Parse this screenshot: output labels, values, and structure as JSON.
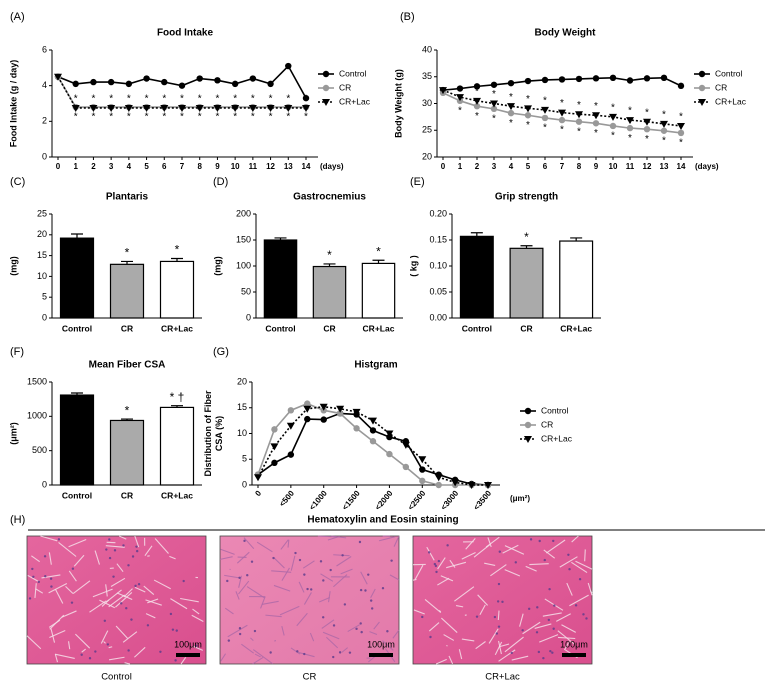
{
  "chart_data": [
    {
      "type": "line",
      "panel": "(A)",
      "title": "Food Intake",
      "ylabel": [
        "Food Intake (g / day)"
      ],
      "x_unit": "(days)",
      "x": [
        0,
        1,
        2,
        3,
        4,
        5,
        6,
        7,
        8,
        9,
        10,
        11,
        12,
        13,
        14
      ],
      "xlim": [
        0,
        14
      ],
      "xticks": [
        0,
        1,
        2,
        3,
        4,
        5,
        6,
        7,
        8,
        9,
        10,
        11,
        12,
        13,
        14
      ],
      "ylim": [
        0,
        6
      ],
      "yticks": [
        0,
        2,
        4,
        6
      ],
      "series": [
        {
          "name": "Control",
          "color": "#000000",
          "marker": "circle",
          "dash": "none",
          "values": [
            4.5,
            4.1,
            4.2,
            4.2,
            4.1,
            4.4,
            4.2,
            4.0,
            4.4,
            4.3,
            4.1,
            4.4,
            4.1,
            5.1,
            3.3
          ]
        },
        {
          "name": "CR",
          "color": "#999999",
          "marker": "circle",
          "dash": "none",
          "values": [
            4.5,
            2.8,
            2.8,
            2.8,
            2.8,
            2.8,
            2.8,
            2.8,
            2.8,
            2.8,
            2.8,
            2.8,
            2.8,
            2.8,
            2.8
          ],
          "significance": [
            null,
            "*",
            "*",
            "*",
            "*",
            "*",
            "*",
            "*",
            "*",
            "*",
            "*",
            "*",
            "*",
            "*",
            "*"
          ],
          "significance_side": "below"
        },
        {
          "name": "CR+Lac",
          "color": "#000000",
          "marker": "triangle-down",
          "dash": "2,2",
          "values": [
            4.5,
            2.75,
            2.75,
            2.75,
            2.75,
            2.75,
            2.75,
            2.75,
            2.75,
            2.75,
            2.75,
            2.75,
            2.75,
            2.75,
            2.75
          ],
          "significance": [
            null,
            "*",
            "*",
            "*",
            "*",
            "*",
            "*",
            "*",
            "*",
            "*",
            "*",
            "*",
            "*",
            "*",
            "*"
          ],
          "significance_side": "above"
        }
      ]
    },
    {
      "type": "line",
      "panel": "(B)",
      "title": "Body Weight",
      "ylabel": [
        "Body Weight (g)"
      ],
      "x_unit": "(days)",
      "x": [
        0,
        1,
        2,
        3,
        4,
        5,
        6,
        7,
        8,
        9,
        10,
        11,
        12,
        13,
        14
      ],
      "xlim": [
        0,
        14
      ],
      "xticks": [
        0,
        1,
        2,
        3,
        4,
        5,
        6,
        7,
        8,
        9,
        10,
        11,
        12,
        13,
        14
      ],
      "ylim": [
        20,
        40
      ],
      "yticks": [
        20,
        25,
        30,
        35,
        40
      ],
      "series": [
        {
          "name": "Control",
          "color": "#000000",
          "marker": "circle",
          "dash": "none",
          "values": [
            32.5,
            32.8,
            33.2,
            33.5,
            33.8,
            34.2,
            34.4,
            34.5,
            34.6,
            34.7,
            34.8,
            34.3,
            34.7,
            34.8,
            33.3
          ]
        },
        {
          "name": "CR",
          "color": "#999999",
          "marker": "circle",
          "dash": "none",
          "values": [
            32.0,
            30.5,
            29.5,
            29.0,
            28.2,
            27.8,
            27.3,
            26.9,
            26.6,
            26.3,
            25.8,
            25.4,
            25.2,
            24.9,
            24.5
          ],
          "significance": [
            null,
            "*",
            "*",
            "*",
            "*",
            "*",
            "*",
            "*",
            "*",
            "*",
            "*",
            "*",
            "*",
            "*",
            "*"
          ],
          "significance_side": "below"
        },
        {
          "name": "CR+Lac",
          "color": "#000000",
          "marker": "triangle-down",
          "dash": "2,2",
          "values": [
            32.5,
            31.2,
            30.5,
            30.0,
            29.5,
            29.1,
            28.8,
            28.3,
            28.0,
            27.8,
            27.5,
            26.9,
            26.6,
            26.2,
            25.8
          ],
          "significance": [
            null,
            null,
            "*",
            "*",
            "*",
            "*",
            "*",
            "*",
            "*",
            "*",
            "*",
            "*",
            "*",
            "*",
            "*"
          ],
          "significance_side": "above"
        }
      ]
    },
    {
      "type": "bar",
      "panel": "(C)",
      "title": "Plantaris",
      "ylabel": [
        "(mg)"
      ],
      "categories": [
        "Control",
        "CR",
        "CR+Lac"
      ],
      "values": [
        19.2,
        12.9,
        13.6
      ],
      "errors": [
        1.0,
        0.7,
        0.7
      ],
      "colors": [
        "#000000",
        "#aaaaaa",
        "#ffffff"
      ],
      "annotations": [
        null,
        "*",
        "*"
      ],
      "ylim": [
        0,
        25
      ],
      "yticks": [
        0,
        5,
        10,
        15,
        20,
        25
      ]
    },
    {
      "type": "bar",
      "panel": "(D)",
      "title": "Gastrocnemius",
      "ylabel": [
        "(mg)"
      ],
      "categories": [
        "Control",
        "CR",
        "CR+Lac"
      ],
      "values": [
        150,
        99,
        105
      ],
      "errors": [
        4,
        5,
        6
      ],
      "colors": [
        "#000000",
        "#aaaaaa",
        "#ffffff"
      ],
      "annotations": [
        null,
        "*",
        "*"
      ],
      "ylim": [
        0,
        200
      ],
      "yticks": [
        0,
        50,
        100,
        150,
        200
      ]
    },
    {
      "type": "bar",
      "panel": "(E)",
      "title": "Grip strength",
      "ylabel": [
        "( kg )"
      ],
      "categories": [
        "Control",
        "CR",
        "CR+Lac"
      ],
      "values": [
        0.157,
        0.134,
        0.148
      ],
      "errors": [
        0.007,
        0.005,
        0.006
      ],
      "colors": [
        "#000000",
        "#aaaaaa",
        "#ffffff"
      ],
      "annotations": [
        null,
        "*",
        null
      ],
      "ylim": [
        0,
        0.2
      ],
      "yticks": [
        {
          "value": 0,
          "label": "0.00"
        },
        {
          "value": 0.05,
          "label": "0.05"
        },
        {
          "value": 0.1,
          "label": "0.10"
        },
        {
          "value": 0.15,
          "label": "0.15"
        },
        {
          "value": 0.2,
          "label": "0.20"
        }
      ]
    },
    {
      "type": "bar",
      "panel": "(F)",
      "title": "Mean Fiber CSA",
      "ylabel": [
        "(μm²)"
      ],
      "categories": [
        "Control",
        "CR",
        "CR+Lac"
      ],
      "values": [
        1310,
        940,
        1130
      ],
      "errors": [
        30,
        20,
        25
      ],
      "colors": [
        "#000000",
        "#aaaaaa",
        "#ffffff"
      ],
      "annotations": [
        null,
        "*",
        "* †"
      ],
      "ylim": [
        0,
        1500
      ],
      "yticks": [
        0,
        500,
        1000,
        1500
      ]
    },
    {
      "type": "line",
      "panel": "(G)",
      "title": "Histgram",
      "ylabel": [
        "Distribution of Fiber",
        "CSA (%)"
      ],
      "x_unit": "(μm²)",
      "x": [
        0,
        250,
        500,
        750,
        1000,
        1250,
        1500,
        1750,
        2000,
        2250,
        2500,
        2750,
        3000,
        3250,
        3500
      ],
      "xlim": [
        0,
        3500
      ],
      "xticks": [
        0,
        {
          "value": 500,
          "label": "<500"
        },
        {
          "value": 1000,
          "label": "<1000"
        },
        {
          "value": 1500,
          "label": "<1500"
        },
        {
          "value": 2000,
          "label": "<2000"
        },
        {
          "value": 2500,
          "label": "<2500"
        },
        {
          "value": 3000,
          "label": "<3000"
        },
        {
          "value": 3500,
          "label": "<3500"
        }
      ],
      "rotate_xticks": true,
      "ylim": [
        0,
        20
      ],
      "yticks": [
        0,
        5,
        10,
        15,
        20
      ],
      "series": [
        {
          "name": "Control",
          "color": "#000000",
          "marker": "circle",
          "dash": "none",
          "values": [
            2.0,
            4.3,
            5.9,
            12.8,
            12.7,
            13.9,
            13.7,
            10.6,
            9.3,
            8.5,
            3.0,
            2.0,
            1.0,
            0.2,
            0
          ]
        },
        {
          "name": "CR",
          "color": "#999999",
          "marker": "circle",
          "dash": "none",
          "values": [
            2.0,
            10.8,
            14.5,
            15.8,
            14.5,
            13.9,
            11.0,
            8.5,
            6.0,
            3.5,
            0.8,
            0,
            0,
            0,
            0
          ]
        },
        {
          "name": "CR+Lac",
          "color": "#000000",
          "marker": "triangle-down",
          "dash": "2,2",
          "values": [
            1.5,
            7.5,
            11.5,
            14.8,
            15.2,
            14.8,
            14.2,
            12.5,
            10.0,
            7.8,
            5.0,
            1.5,
            0.5,
            0,
            0
          ]
        }
      ]
    }
  ],
  "histology": {
    "panel": "(H)",
    "title": "Hematoxylin and Eosin staining",
    "images": [
      {
        "caption": "Control",
        "scale_bar": "100μm"
      },
      {
        "caption": "CR",
        "scale_bar": "100μm"
      },
      {
        "caption": "CR+Lac",
        "scale_bar": "100μm"
      }
    ]
  }
}
